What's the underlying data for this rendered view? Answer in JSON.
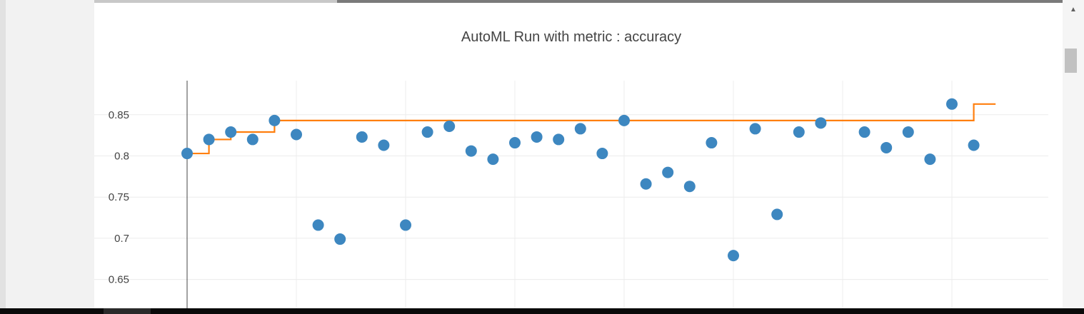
{
  "chart_data": {
    "type": "scatter",
    "title": "AutoML Run with metric : accuracy",
    "xlabel": "",
    "ylabel": "",
    "ylim": [
      0.625,
      0.89
    ],
    "xlim": [
      -0.1,
      38
    ],
    "yticks": [
      0.65,
      0.7,
      0.75,
      0.8,
      0.85
    ],
    "ytick_labels": [
      "0.65",
      "0.7",
      "0.75",
      "0.8",
      "0.85"
    ],
    "xgrid": [
      5,
      10,
      15,
      20,
      25,
      30,
      35
    ],
    "grid": true,
    "legend": "none",
    "series": [
      {
        "kind": "markers",
        "color": "#3d87c0",
        "x": [
          0,
          1,
          2,
          3,
          4,
          5,
          6,
          7,
          8,
          9,
          10,
          11,
          12,
          13,
          14,
          15,
          16,
          17,
          18,
          19,
          20,
          21,
          22,
          23,
          24,
          25,
          26,
          27,
          28,
          29,
          31,
          32,
          33,
          34,
          35,
          36
        ],
        "y": [
          0.803,
          0.82,
          0.829,
          0.82,
          0.843,
          0.826,
          0.716,
          0.699,
          0.823,
          0.813,
          0.716,
          0.829,
          0.836,
          0.806,
          0.796,
          0.816,
          0.823,
          0.82,
          0.833,
          0.803,
          0.843,
          0.766,
          0.78,
          0.763,
          0.816,
          0.679,
          0.833,
          0.729,
          0.829,
          0.84,
          0.829,
          0.81,
          0.829,
          0.796,
          0.863,
          0.813
        ]
      },
      {
        "kind": "step-line",
        "color": "#ff7f0e",
        "x": [
          0,
          1,
          2,
          4,
          36,
          37
        ],
        "y": [
          0.803,
          0.82,
          0.829,
          0.843,
          0.863,
          0.863
        ]
      }
    ]
  }
}
